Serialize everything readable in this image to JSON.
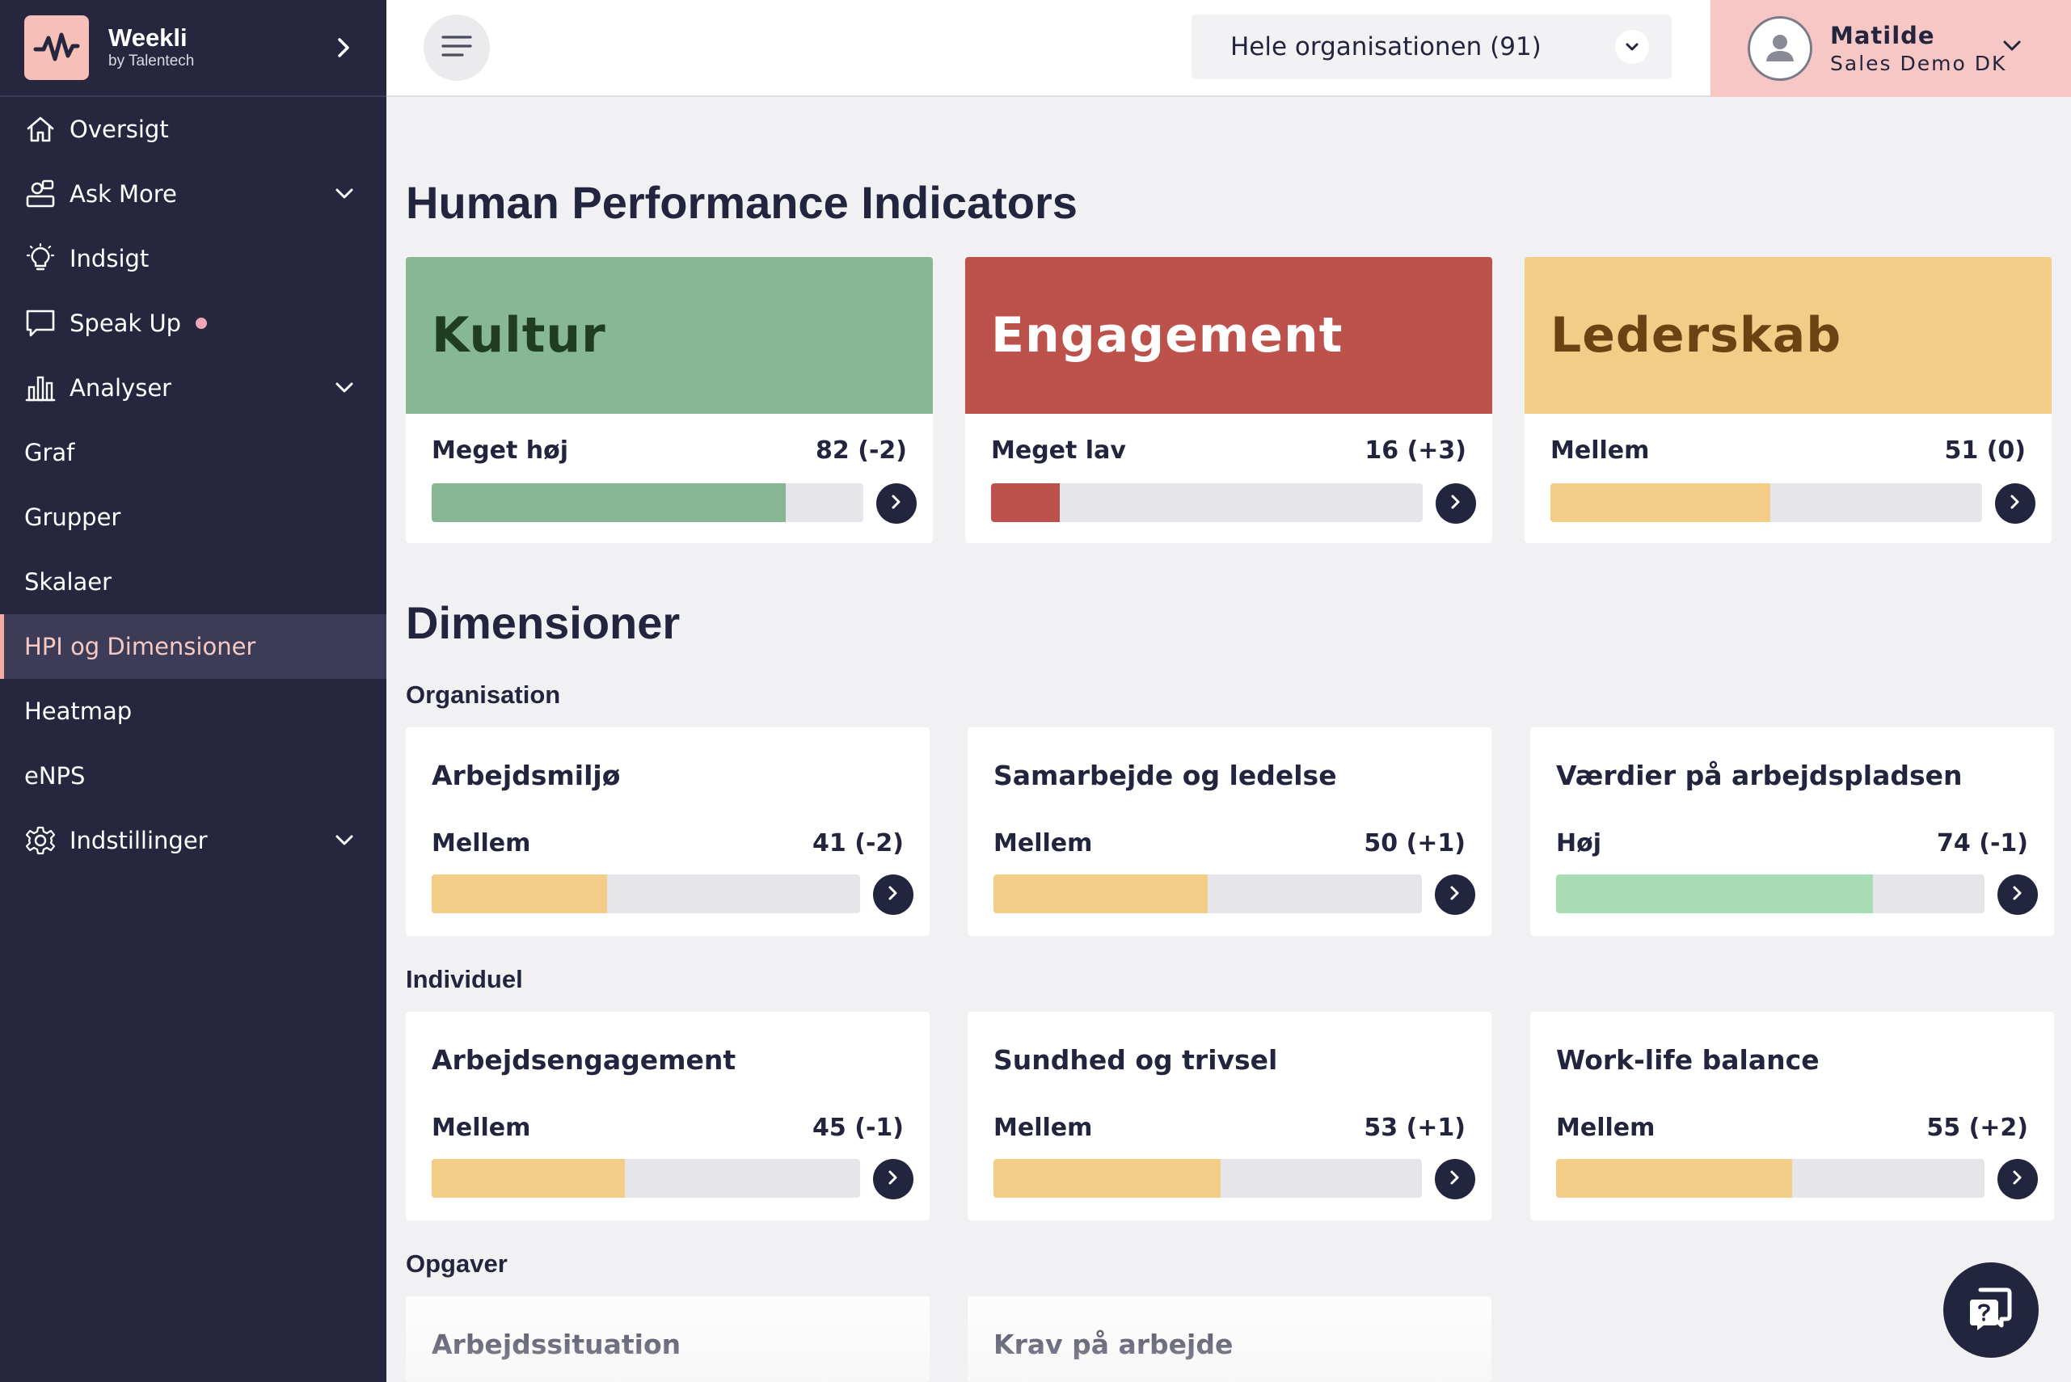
{
  "brand": {
    "name": "Weekli",
    "sub": "by Talentech"
  },
  "sidebar": {
    "items": [
      {
        "label": "Oversigt"
      },
      {
        "label": "Ask More"
      },
      {
        "label": "Indsigt"
      },
      {
        "label": "Speak Up"
      },
      {
        "label": "Analyser"
      },
      {
        "label": "Graf"
      },
      {
        "label": "Grupper"
      },
      {
        "label": "Skalaer"
      },
      {
        "label": "HPI og Dimensioner"
      },
      {
        "label": "Heatmap"
      },
      {
        "label": "eNPS"
      },
      {
        "label": "Indstillinger"
      }
    ]
  },
  "topbar": {
    "org_selector": "Hele organisationen (91)",
    "user_name": "Matilde",
    "user_org": "Sales Demo DK"
  },
  "main": {
    "title": "Human Performance Indicators",
    "hpi": [
      {
        "name": "Kultur",
        "level": "Meget høj",
        "score": "82 (-2)",
        "value": 82,
        "head_color": "#88b796",
        "head_text_color": "#1f3d1f",
        "bar_color": "#86b694"
      },
      {
        "name": "Engagement",
        "level": "Meget lav",
        "score": "16 (+3)",
        "value": 16,
        "head_color": "#bd524d",
        "head_text_color": "#ffffff",
        "bar_color": "#bd524d"
      },
      {
        "name": "Lederskab",
        "level": "Mellem",
        "score": "51 (0)",
        "value": 51,
        "head_color": "#f3cd88",
        "head_text_color": "#6b4212",
        "bar_color": "#f3cd88"
      }
    ],
    "dimensions_title": "Dimensioner",
    "groups": [
      {
        "title": "Organisation",
        "items": [
          {
            "name": "Arbejdsmiljø",
            "level": "Mellem",
            "score": "41 (-2)",
            "value": 41,
            "bar_color": "#f3cd88"
          },
          {
            "name": "Samarbejde og ledelse",
            "level": "Mellem",
            "score": "50 (+1)",
            "value": 50,
            "bar_color": "#f3cd88"
          },
          {
            "name": "Værdier på arbejdspladsen",
            "level": "Høj",
            "score": "74 (-1)",
            "value": 74,
            "bar_color": "#a8dcb4"
          }
        ]
      },
      {
        "title": "Individuel",
        "items": [
          {
            "name": "Arbejdsengagement",
            "level": "Mellem",
            "score": "45 (-1)",
            "value": 45,
            "bar_color": "#f3cd88"
          },
          {
            "name": "Sundhed og trivsel",
            "level": "Mellem",
            "score": "53 (+1)",
            "value": 53,
            "bar_color": "#f3cd88"
          },
          {
            "name": "Work-life balance",
            "level": "Mellem",
            "score": "55 (+2)",
            "value": 55,
            "bar_color": "#f3cd88"
          }
        ]
      },
      {
        "title": "Opgaver",
        "items": [
          {
            "name": "Arbejdssituation"
          },
          {
            "name": "Krav på arbejde"
          }
        ]
      }
    ]
  },
  "colors": {
    "sidebar_bg": "#26273f",
    "accent_pink": "#f6c7c5",
    "ink": "#23243d"
  },
  "icons": {
    "help": "help-chat-icon"
  }
}
